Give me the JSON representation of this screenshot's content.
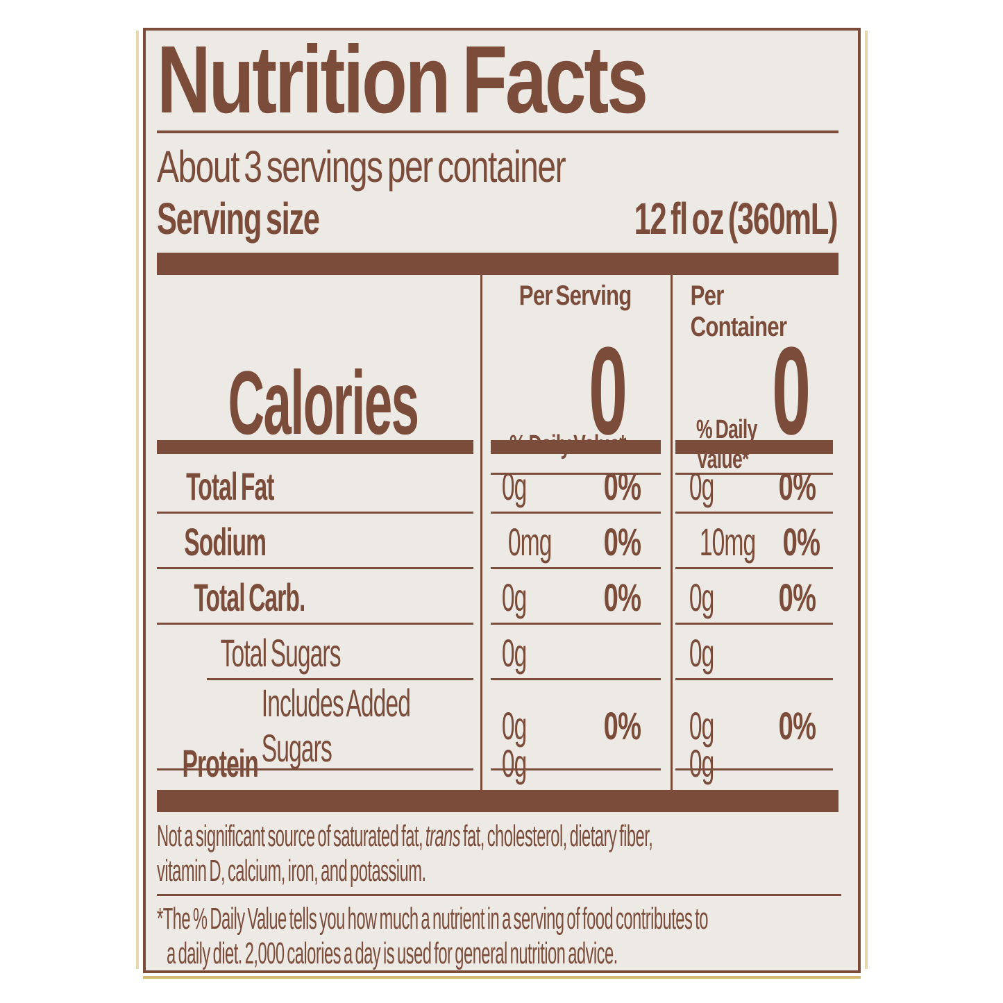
{
  "colors": {
    "brown": "#7b4c3a",
    "bar_brown": "#7b4c3a",
    "label_bg": "#edeae6",
    "page_bg": "#ffffff",
    "gold_edge": "#d9c184"
  },
  "label": {
    "title": "Nutrition Facts",
    "servings_per_container": "About 3 servings per container",
    "serving_size": {
      "label": "Serving size",
      "value": "12 fl oz (360mL)"
    },
    "calories": {
      "word": "Calories",
      "per_serving_header": "Per Serving",
      "per_container_header": "Per Container",
      "per_serving_value": "0",
      "per_container_value": "0"
    },
    "daily_value_header": "% Daily Value*",
    "rows": [
      {
        "label": "Total Fat",
        "indent": 0,
        "bold": true,
        "rule": "full",
        "ps_amount": "0g",
        "ps_dv": "0%",
        "pc_amount": "0g",
        "pc_dv": "0%"
      },
      {
        "label": "Sodium",
        "indent": 0,
        "bold": true,
        "rule": "full",
        "ps_amount": "0mg",
        "ps_dv": "0%",
        "pc_amount": "10mg",
        "pc_dv": "0%"
      },
      {
        "label": "Total Carb.",
        "indent": 0,
        "bold": true,
        "rule": "full",
        "ps_amount": "0g",
        "ps_dv": "0%",
        "pc_amount": "0g",
        "pc_dv": "0%"
      },
      {
        "label": "Total Sugars",
        "indent": 1,
        "bold": false,
        "rule": "indent",
        "ps_amount": "0g",
        "ps_dv": "",
        "pc_amount": "0g",
        "pc_dv": ""
      },
      {
        "label": "Includes Added Sugars",
        "indent": 2,
        "bold": false,
        "rule": "full",
        "ps_amount": "0g",
        "ps_dv": "0%",
        "pc_amount": "0g",
        "pc_dv": "0%"
      },
      {
        "label": "Protein",
        "indent": 0,
        "bold": true,
        "rule": "none",
        "ps_amount": "0g",
        "ps_dv": "",
        "pc_amount": "0g",
        "pc_dv": ""
      }
    ],
    "footnote_sources": {
      "line1_pre": "Not a significant source of saturated fat, ",
      "line1_italic": "trans",
      "line1_post": " fat, cholesterol, dietary fiber,",
      "line2": "vitamin D, calcium, iron, and potassium."
    },
    "footnote_daily_value": {
      "line1": "*The % Daily Value tells you how much a nutrient in a serving of food contributes to",
      "line2": "a daily diet. 2,000 calories a day is used for general nutrition advice."
    }
  }
}
